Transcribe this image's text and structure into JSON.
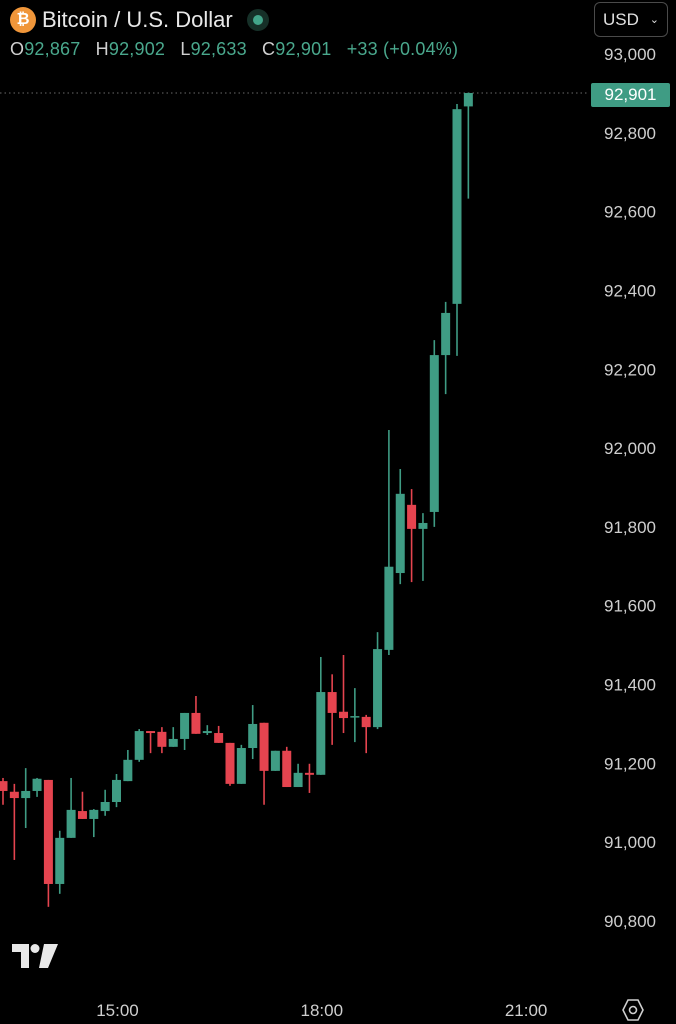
{
  "header": {
    "title": "Bitcoin / U.S. Dollar",
    "coin_icon": "bitcoin-icon",
    "market_status_icon": "live-dot-icon",
    "ohlc": {
      "o_label": "O",
      "o_value": "92,867",
      "h_label": "H",
      "h_value": "92,902",
      "l_label": "L",
      "l_value": "92,633",
      "c_label": "C",
      "c_value": "92,901",
      "change": "+33 (+0.04%)"
    },
    "currency": "USD"
  },
  "colors": {
    "up": "#3f9c84",
    "down": "#e5444f",
    "background": "#000000",
    "text": "#d9d9d9"
  },
  "chart_data": {
    "type": "candlestick",
    "interval_minutes": 10,
    "x": [
      "13:20",
      "13:30",
      "13:40",
      "13:50",
      "14:00",
      "14:10",
      "14:20",
      "14:30",
      "14:40",
      "14:50",
      "15:00",
      "15:10",
      "15:20",
      "15:30",
      "15:40",
      "15:50",
      "16:00",
      "16:10",
      "16:20",
      "16:30",
      "16:40",
      "16:50",
      "17:00",
      "17:10",
      "17:20",
      "17:30",
      "17:40",
      "17:50",
      "18:00",
      "18:10",
      "18:20",
      "18:30",
      "18:40",
      "18:50",
      "19:00",
      "19:10",
      "19:20",
      "19:30",
      "19:40",
      "19:50",
      "20:00",
      "20:10"
    ],
    "ohlc": [
      [
        91155,
        91163,
        91095,
        91130
      ],
      [
        91128,
        91148,
        90955,
        91112
      ],
      [
        91112,
        91188,
        91036,
        91130
      ],
      [
        91130,
        91163,
        91115,
        91161
      ],
      [
        91158,
        91158,
        90836,
        90894
      ],
      [
        90894,
        91029,
        90869,
        91011
      ],
      [
        91011,
        91163,
        91011,
        91082
      ],
      [
        91079,
        91128,
        91059,
        91059
      ],
      [
        91059,
        91084,
        91013,
        91082
      ],
      [
        91079,
        91133,
        91067,
        91102
      ],
      [
        91102,
        91173,
        91089,
        91158
      ],
      [
        91155,
        91234,
        91155,
        91209
      ],
      [
        91209,
        91287,
        91204,
        91282
      ],
      [
        91282,
        91282,
        91226,
        91277
      ],
      [
        91280,
        91292,
        91226,
        91242
      ],
      [
        91242,
        91292,
        91242,
        91262
      ],
      [
        91262,
        91328,
        91234,
        91328
      ],
      [
        91328,
        91371,
        91275,
        91275
      ],
      [
        91277,
        91297,
        91272,
        91282
      ],
      [
        91277,
        91295,
        91252,
        91252
      ],
      [
        91252,
        91252,
        91143,
        91148
      ],
      [
        91148,
        91247,
        91148,
        91239
      ],
      [
        91239,
        91348,
        91211,
        91300
      ],
      [
        91303,
        91303,
        91095,
        91181
      ],
      [
        91181,
        91232,
        91181,
        91232
      ],
      [
        91232,
        91242,
        91140,
        91140
      ],
      [
        91140,
        91199,
        91140,
        91176
      ],
      [
        91176,
        91199,
        91125,
        91171
      ],
      [
        91171,
        91470,
        91171,
        91381
      ],
      [
        91381,
        91426,
        91247,
        91328
      ],
      [
        91331,
        91475,
        91277,
        91315
      ],
      [
        91318,
        91391,
        91254,
        91320
      ],
      [
        91318,
        91323,
        91226,
        91292
      ],
      [
        91292,
        91533,
        91287,
        91490
      ],
      [
        91488,
        92046,
        91475,
        91699
      ],
      [
        91683,
        91947,
        91655,
        91884
      ],
      [
        91856,
        91896,
        91660,
        91795
      ],
      [
        91795,
        91835,
        91663,
        91810
      ],
      [
        91838,
        92274,
        91800,
        92236
      ],
      [
        92236,
        92371,
        92137,
        92343
      ],
      [
        92366,
        92873,
        92234,
        92860
      ],
      [
        92867,
        92902,
        92633,
        92901
      ]
    ],
    "ylim": [
      90700,
      93050
    ],
    "y_ticks": [
      "93,000",
      "92,800",
      "92,600",
      "92,400",
      "92,200",
      "92,000",
      "91,800",
      "91,600",
      "91,400",
      "91,200",
      "91,000",
      "90,800"
    ],
    "x_ticks": [
      "15:00",
      "18:00",
      "21:00"
    ],
    "last_price": "92,901",
    "grid": false,
    "axis_position": "right"
  },
  "footer": {
    "logo": "TradingView",
    "settings_icon": "settings-hexagon-icon"
  }
}
